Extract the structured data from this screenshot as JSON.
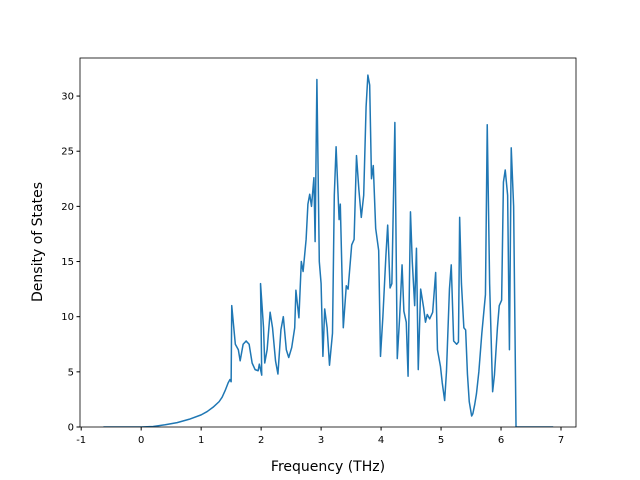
{
  "chart_data": {
    "type": "line",
    "x_label": "Frequency (THz)",
    "y_label": "Density of States",
    "xlim": [
      -1.02,
      7.25
    ],
    "ylim": [
      0,
      33.45
    ],
    "xticks": [
      -1,
      0,
      1,
      2,
      3,
      4,
      5,
      6,
      7
    ],
    "yticks": [
      0,
      5,
      10,
      15,
      20,
      25,
      30
    ],
    "grid": false,
    "series": [
      {
        "color": "#1f77b4",
        "x": [
          -0.63,
          0,
          0.2,
          0.4,
          0.6,
          0.8,
          1.0,
          1.1,
          1.2,
          1.3,
          1.35,
          1.4,
          1.45,
          1.48,
          1.5,
          1.51,
          1.57,
          1.62,
          1.65,
          1.7,
          1.75,
          1.8,
          1.85,
          1.9,
          1.95,
          1.97,
          2.01,
          1.99,
          2.04,
          2.06,
          2.1,
          2.15,
          2.19,
          2.24,
          2.28,
          2.33,
          2.37,
          2.42,
          2.46,
          2.51,
          2.56,
          2.58,
          2.63,
          2.67,
          2.7,
          2.75,
          2.78,
          2.81,
          2.84,
          2.88,
          2.9,
          2.93,
          2.97,
          3.0,
          3.03,
          3.06,
          3.1,
          3.14,
          3.19,
          3.22,
          3.25,
          3.3,
          3.32,
          3.37,
          3.42,
          3.45,
          3.51,
          3.55,
          3.59,
          3.63,
          3.67,
          3.71,
          3.75,
          3.78,
          3.81,
          3.84,
          3.87,
          3.91,
          3.96,
          3.99,
          4.03,
          4.08,
          4.11,
          4.15,
          4.18,
          4.23,
          4.27,
          4.31,
          4.35,
          4.38,
          4.42,
          4.45,
          4.49,
          4.52,
          4.56,
          4.59,
          4.62,
          4.66,
          4.71,
          4.74,
          4.77,
          4.81,
          4.86,
          4.91,
          4.94,
          4.99,
          5.02,
          5.06,
          5.09,
          5.14,
          5.17,
          5.21,
          5.26,
          5.29,
          5.31,
          5.34,
          5.38,
          5.41,
          5.44,
          5.47,
          5.51,
          5.53,
          5.56,
          5.59,
          5.63,
          5.68,
          5.74,
          5.77,
          5.81,
          5.86,
          5.89,
          5.94,
          5.97,
          6.01,
          6.04,
          6.07,
          6.11,
          6.14,
          6.17,
          6.21,
          6.25,
          6.87
        ],
        "values": [
          0,
          0,
          0.05,
          0.2,
          0.4,
          0.7,
          1.1,
          1.4,
          1.8,
          2.3,
          2.7,
          3.3,
          4.0,
          4.3,
          4.1,
          11.0,
          7.5,
          7.0,
          6.0,
          7.5,
          7.8,
          7.5,
          5.8,
          5.2,
          5.1,
          5.7,
          4.7,
          13.0,
          9.0,
          5.8,
          7.0,
          10.4,
          9.0,
          6.0,
          4.8,
          8.8,
          10.0,
          7.0,
          6.3,
          7.2,
          9.0,
          12.4,
          9.9,
          15.0,
          14.1,
          17.0,
          20.2,
          21.1,
          20.0,
          22.6,
          16.8,
          31.5,
          15.0,
          13.0,
          6.4,
          10.7,
          9.0,
          5.6,
          8.5,
          21.0,
          25.4,
          18.8,
          20.2,
          9.0,
          12.8,
          12.5,
          16.5,
          17.0,
          24.6,
          21.5,
          19.0,
          21.0,
          29.0,
          31.9,
          31.0,
          22.5,
          23.7,
          18.0,
          16.0,
          6.4,
          10.0,
          15.5,
          18.3,
          12.6,
          13.0,
          27.6,
          6.2,
          10.0,
          14.7,
          10.5,
          9.5,
          4.6,
          19.5,
          15.0,
          11.0,
          16.2,
          5.2,
          12.5,
          10.8,
          9.5,
          10.2,
          9.8,
          10.4,
          14.0,
          7.0,
          5.5,
          4.0,
          2.4,
          5.0,
          12.5,
          14.7,
          7.8,
          7.5,
          7.7,
          19.0,
          13.0,
          9.0,
          8.8,
          4.8,
          2.3,
          1.0,
          1.2,
          2.0,
          3.0,
          5.0,
          8.5,
          12.0,
          27.4,
          13.0,
          3.2,
          4.7,
          9.0,
          11.0,
          11.5,
          22.2,
          23.3,
          21.0,
          7.0,
          25.3,
          20.0,
          0,
          0
        ]
      }
    ]
  }
}
